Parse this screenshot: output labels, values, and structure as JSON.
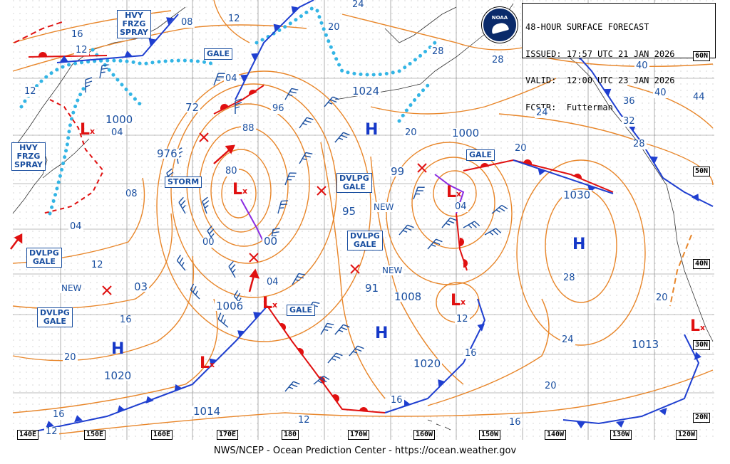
{
  "header": {
    "line1": "48-HOUR SURFACE FORECAST",
    "line2": "ISSUED: 17:57 UTC 21 JAN 2026",
    "line3": "VALID:  12:00 UTC 23 JAN 2026",
    "line4": "FCSTR:  Futterman"
  },
  "logo_text": "NOAA",
  "footer": "NWS/NCEP - Ocean Prediction Center - https://ocean.weather.gov",
  "colors": {
    "isobar": "#e8862a",
    "cold_front": "#1f3fd0",
    "warm_front": "#e01010",
    "occluded": "#8a2be2",
    "ice": "#33b5e5",
    "label": "#1a4fa0",
    "grid": "#7a7a7a"
  },
  "lat_labels": [
    "60N",
    "50N",
    "40N",
    "30N",
    "20N"
  ],
  "lon_labels": [
    "140E",
    "150E",
    "160E",
    "170E",
    "180",
    "170W",
    "160W",
    "150W",
    "140W",
    "130W",
    "120W"
  ],
  "warning_labels": [
    {
      "id": "hvy-frzg-spray-1",
      "text": "HVY\nFRZG\nSPRAY"
    },
    {
      "id": "hvy-frzg-spray-2",
      "text": "HVY\nFRZG\nSPRAY"
    },
    {
      "id": "gale-1",
      "text": "GALE"
    },
    {
      "id": "storm-1",
      "text": "STORM"
    },
    {
      "id": "dvlpg-gale-1",
      "text": "DVLPG\nGALE"
    },
    {
      "id": "dvlpg-gale-2",
      "text": "DVLPG\nGALE"
    },
    {
      "id": "dvlpg-gale-3",
      "text": "DVLPG\nGALE"
    },
    {
      "id": "dvlpg-gale-4",
      "text": "DVLPG\nGALE"
    },
    {
      "id": "gale-2",
      "text": "GALE"
    },
    {
      "id": "gale-3",
      "text": "GALE"
    }
  ],
  "pressure_labels": [
    {
      "id": "p1000a",
      "text": "1000"
    },
    {
      "id": "p976",
      "text": "976"
    },
    {
      "id": "p1024",
      "text": "1024"
    },
    {
      "id": "p1000b",
      "text": "1000"
    },
    {
      "id": "p99",
      "text": "99"
    },
    {
      "id": "p95",
      "text": "95"
    },
    {
      "id": "p1030",
      "text": "1030"
    },
    {
      "id": "p00",
      "text": "00"
    },
    {
      "id": "p1006",
      "text": "1006"
    },
    {
      "id": "p03",
      "text": "03"
    },
    {
      "id": "p91",
      "text": "91"
    },
    {
      "id": "p1008",
      "text": "1008"
    },
    {
      "id": "p1020a",
      "text": "1020"
    },
    {
      "id": "p1020b",
      "text": "1020"
    },
    {
      "id": "p1014",
      "text": "1014"
    },
    {
      "id": "p1013",
      "text": "1013"
    },
    {
      "id": "p72",
      "text": "72"
    }
  ],
  "isobar_values": [
    {
      "id": "i16a",
      "text": "16"
    },
    {
      "id": "i12a",
      "text": "12"
    },
    {
      "id": "i08a",
      "text": "08"
    },
    {
      "id": "i12b",
      "text": "12"
    },
    {
      "id": "i24a",
      "text": "24"
    },
    {
      "id": "i20a",
      "text": "20"
    },
    {
      "id": "i28a",
      "text": "28"
    },
    {
      "id": "i28b",
      "text": "28"
    },
    {
      "id": "i12c",
      "text": "12"
    },
    {
      "id": "i04a",
      "text": "04"
    },
    {
      "id": "i96",
      "text": "96"
    },
    {
      "id": "i88",
      "text": "88"
    },
    {
      "id": "i80",
      "text": "80"
    },
    {
      "id": "i04b",
      "text": "04"
    },
    {
      "id": "i08b",
      "text": "08"
    },
    {
      "id": "i04c",
      "text": "04"
    },
    {
      "id": "i00",
      "text": "00"
    },
    {
      "id": "i12d",
      "text": "12"
    },
    {
      "id": "i16b",
      "text": "16"
    },
    {
      "id": "i20b",
      "text": "20"
    },
    {
      "id": "i16c",
      "text": "16"
    },
    {
      "id": "i12e",
      "text": "12"
    },
    {
      "id": "i04d",
      "text": "04"
    },
    {
      "id": "i04e",
      "text": "04"
    },
    {
      "id": "i12f",
      "text": "12"
    },
    {
      "id": "i16d",
      "text": "16"
    },
    {
      "id": "i16e",
      "text": "16"
    },
    {
      "id": "i20c",
      "text": "20"
    },
    {
      "id": "i24b",
      "text": "24"
    },
    {
      "id": "i20d",
      "text": "20"
    },
    {
      "id": "i40a",
      "text": "40"
    },
    {
      "id": "i40b",
      "text": "40"
    },
    {
      "id": "i44",
      "text": "44"
    },
    {
      "id": "i36",
      "text": "36"
    },
    {
      "id": "i32",
      "text": "32"
    },
    {
      "id": "i28c",
      "text": "28"
    },
    {
      "id": "i28d",
      "text": "28"
    },
    {
      "id": "i24c",
      "text": "24"
    },
    {
      "id": "i20e",
      "text": "20"
    },
    {
      "id": "i16f",
      "text": "16"
    },
    {
      "id": "i12g",
      "text": "12"
    },
    {
      "id": "i20f",
      "text": "20"
    }
  ],
  "new_labels": [
    "NEW",
    "NEW",
    "NEW"
  ],
  "high_letter": "H",
  "low_letter": "L",
  "low_marker": "x"
}
